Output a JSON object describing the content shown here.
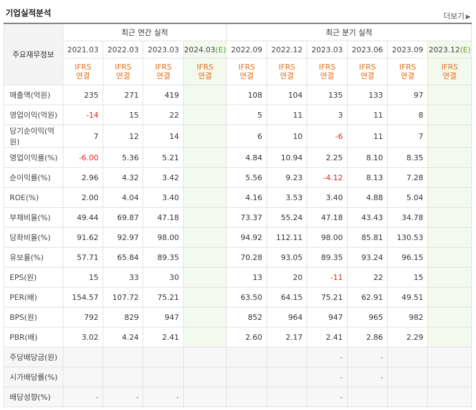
{
  "section_title": "기업실적분석",
  "more_label": "더보기",
  "more_icon": "chevron-right-icon",
  "header": {
    "main_label": "주요재무정보",
    "annual_title": "최근 연간 실적",
    "quarter_title": "최근 분기 실적",
    "annual_periods": [
      "2021.03",
      "2022.03",
      "2023.03",
      "2024.03"
    ],
    "annual_estimate_tag": "(E)",
    "quarter_periods": [
      "2022.09",
      "2022.12",
      "2023.03",
      "2023.06",
      "2023.09",
      "2023.12"
    ],
    "quarter_estimate_tag": "(E)",
    "accounting_line1": "IFRS",
    "accounting_line2": "연결"
  },
  "rows": [
    {
      "label": "매출액(억원)",
      "values": [
        "235",
        "271",
        "419",
        "",
        "108",
        "104",
        "135",
        "133",
        "97",
        ""
      ]
    },
    {
      "label": "영업이익(억원)",
      "values": [
        "-14",
        "15",
        "22",
        "",
        "5",
        "11",
        "3",
        "11",
        "8",
        ""
      ]
    },
    {
      "label": "당기순이익(억원)",
      "values": [
        "7",
        "12",
        "14",
        "",
        "6",
        "10",
        "-6",
        "11",
        "7",
        ""
      ]
    },
    {
      "label": "영업이익률(%)",
      "values": [
        "-6.00",
        "5.36",
        "5.21",
        "",
        "4.84",
        "10.94",
        "2.25",
        "8.10",
        "8.35",
        ""
      ]
    },
    {
      "label": "순이익률(%)",
      "values": [
        "2.96",
        "4.32",
        "3.42",
        "",
        "5.56",
        "9.23",
        "-4.12",
        "8.13",
        "7.28",
        ""
      ]
    },
    {
      "label": "ROE(%)",
      "values": [
        "2.00",
        "4.04",
        "3.40",
        "",
        "4.16",
        "3.53",
        "3.40",
        "4.88",
        "5.04",
        ""
      ]
    },
    {
      "label": "부채비율(%)",
      "values": [
        "49.44",
        "69.87",
        "47.18",
        "",
        "73.37",
        "55.24",
        "47.18",
        "43.43",
        "34.78",
        ""
      ]
    },
    {
      "label": "당좌비율(%)",
      "values": [
        "91.62",
        "92.97",
        "98.00",
        "",
        "94.92",
        "112.11",
        "98.00",
        "85.81",
        "130.53",
        ""
      ]
    },
    {
      "label": "유보율(%)",
      "values": [
        "57.71",
        "65.84",
        "89.35",
        "",
        "70.28",
        "93.05",
        "89.35",
        "93.24",
        "96.15",
        ""
      ]
    },
    {
      "label": "EPS(원)",
      "values": [
        "15",
        "33",
        "30",
        "",
        "13",
        "20",
        "-11",
        "22",
        "15",
        ""
      ]
    },
    {
      "label": "PER(배)",
      "values": [
        "154.57",
        "107.72",
        "75.21",
        "",
        "63.50",
        "64.15",
        "75.21",
        "62.91",
        "49.51",
        ""
      ]
    },
    {
      "label": "BPS(원)",
      "values": [
        "792",
        "829",
        "947",
        "",
        "852",
        "964",
        "947",
        "965",
        "982",
        ""
      ]
    },
    {
      "label": "PBR(배)",
      "values": [
        "3.02",
        "4.24",
        "2.41",
        "",
        "2.60",
        "2.17",
        "2.41",
        "2.86",
        "2.29",
        ""
      ]
    },
    {
      "label": "주당배당금(원)",
      "values": [
        "",
        "",
        "",
        "",
        "",
        "",
        "-",
        "-",
        "",
        ""
      ]
    },
    {
      "label": "시가배당률(%)",
      "values": [
        "",
        "",
        "",
        "",
        "",
        "",
        "-",
        "-",
        "",
        ""
      ]
    },
    {
      "label": "배당성향(%)",
      "values": [
        "-",
        "-",
        "-",
        "",
        "",
        "",
        "-",
        "",
        "",
        ""
      ]
    }
  ],
  "colors": {
    "negative": "#d6281e",
    "accounting": "#e0701a",
    "estimate_text": "#5f9e35",
    "estimate_bg": "#f4f9ee"
  }
}
